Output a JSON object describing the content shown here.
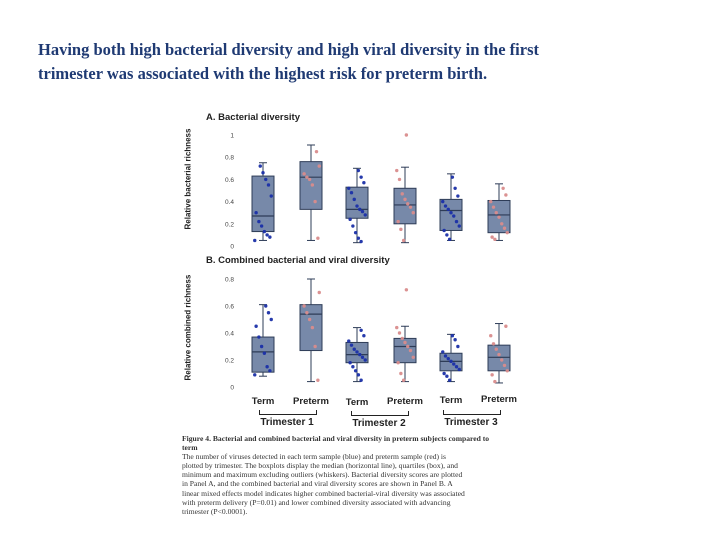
{
  "slide": {
    "title_line1": "Having both high bacterial diversity and high viral diversity in the first",
    "title_line2": "trimester was associated with the highest risk for preterm birth."
  },
  "colors": {
    "box_fill": "#7789a9",
    "box_stroke": "#2e3c57",
    "term": "#1a2fa8",
    "preterm": "#d98c8c",
    "title": "#1f3a73"
  },
  "x_labels": [
    "Term",
    "Preterm",
    "Term",
    "Preterm",
    "Term",
    "Preterm"
  ],
  "trimesters": [
    "Trimester 1",
    "Trimester 2",
    "Trimester 3"
  ],
  "caption": {
    "heading_line1": "Figure 4. Bacterial and combined bacterial and viral diversity in preterm subjects compared to",
    "heading_line2": "term",
    "l1": "The number of viruses detected in each term sample (blue) and preterm sample (red) is",
    "l2": "plotted by trimester. The boxplots display the median (horizontal line), quartiles (box), and",
    "l3": "minimum and maximum excluding outliers (whiskers). Bacterial diversity scores are plotted",
    "l4": "in Panel A, and the combined bacterial and viral diversity scores are shown in Panel B. A",
    "l5": "linear mixed effects model indicates higher combined bacterial-viral diversity was associated",
    "l6": "with preterm delivery (P=0.01) and lower combined diversity associated with advancing",
    "l7": "trimester (P<0.0001)."
  },
  "chart_data": [
    {
      "type": "boxplot",
      "title": "A. Bacterial diversity",
      "ylabel": "Relative bacterial richness",
      "ylim": [
        0,
        1
      ],
      "yticks": [
        "0",
        "0.2",
        "0.4",
        "0.6",
        "0.8",
        "1"
      ],
      "categories": [
        "Term",
        "Preterm",
        "Term",
        "Preterm",
        "Term",
        "Preterm"
      ],
      "groups": [
        "Trimester 1",
        "Trimester 1",
        "Trimester 2",
        "Trimester 2",
        "Trimester 3",
        "Trimester 3"
      ],
      "boxes": [
        {
          "min": 0.05,
          "q1": 0.13,
          "median": 0.27,
          "q3": 0.63,
          "max": 0.75,
          "color": "term",
          "points": [
            0.05,
            0.08,
            0.1,
            0.13,
            0.18,
            0.22,
            0.3,
            0.45,
            0.55,
            0.6,
            0.66,
            0.72
          ]
        },
        {
          "min": 0.05,
          "q1": 0.33,
          "median": 0.62,
          "q3": 0.76,
          "max": 0.91,
          "color": "preterm",
          "points": [
            0.07,
            0.4,
            0.55,
            0.6,
            0.62,
            0.65,
            0.72,
            0.85
          ]
        },
        {
          "min": 0.03,
          "q1": 0.25,
          "median": 0.33,
          "q3": 0.53,
          "max": 0.7,
          "color": "term",
          "points": [
            0.04,
            0.07,
            0.12,
            0.18,
            0.24,
            0.28,
            0.31,
            0.33,
            0.36,
            0.42,
            0.48,
            0.52,
            0.57,
            0.62,
            0.68
          ]
        },
        {
          "min": 0.03,
          "q1": 0.2,
          "median": 0.37,
          "q3": 0.52,
          "max": 0.71,
          "color": "preterm",
          "points": [
            1.0,
            0.05,
            0.15,
            0.22,
            0.3,
            0.35,
            0.38,
            0.42,
            0.47,
            0.6,
            0.68
          ]
        },
        {
          "min": 0.05,
          "q1": 0.14,
          "median": 0.32,
          "q3": 0.42,
          "max": 0.65,
          "color": "term",
          "points": [
            0.06,
            0.1,
            0.14,
            0.18,
            0.22,
            0.27,
            0.3,
            0.33,
            0.36,
            0.4,
            0.45,
            0.52,
            0.62
          ]
        },
        {
          "min": 0.05,
          "q1": 0.12,
          "median": 0.28,
          "q3": 0.41,
          "max": 0.56,
          "color": "preterm",
          "points": [
            0.06,
            0.08,
            0.12,
            0.16,
            0.2,
            0.26,
            0.3,
            0.35,
            0.4,
            0.46,
            0.52
          ]
        }
      ]
    },
    {
      "type": "boxplot",
      "title": "B. Combined bacterial and viral diversity",
      "ylabel": "Relative combined richness",
      "ylim": [
        0,
        0.8
      ],
      "yticks": [
        "0",
        "0.2",
        "0.4",
        "0.6",
        "0.8"
      ],
      "categories": [
        "Term",
        "Preterm",
        "Term",
        "Preterm",
        "Term",
        "Preterm"
      ],
      "groups": [
        "Trimester 1",
        "Trimester 1",
        "Trimester 2",
        "Trimester 2",
        "Trimester 3",
        "Trimester 3"
      ],
      "boxes": [
        {
          "min": 0.08,
          "q1": 0.11,
          "median": 0.26,
          "q3": 0.37,
          "max": 0.61,
          "color": "term",
          "points": [
            0.09,
            0.12,
            0.15,
            0.25,
            0.3,
            0.37,
            0.45,
            0.5,
            0.55,
            0.6
          ]
        },
        {
          "min": 0.04,
          "q1": 0.27,
          "median": 0.54,
          "q3": 0.61,
          "max": 0.8,
          "color": "preterm",
          "points": [
            0.05,
            0.3,
            0.44,
            0.5,
            0.55,
            0.6,
            0.7
          ]
        },
        {
          "min": 0.04,
          "q1": 0.18,
          "median": 0.24,
          "q3": 0.33,
          "max": 0.44,
          "color": "term",
          "points": [
            0.05,
            0.09,
            0.12,
            0.15,
            0.18,
            0.2,
            0.22,
            0.24,
            0.26,
            0.28,
            0.31,
            0.34,
            0.38,
            0.42
          ]
        },
        {
          "min": 0.04,
          "q1": 0.18,
          "median": 0.3,
          "q3": 0.36,
          "max": 0.45,
          "color": "preterm",
          "points": [
            0.72,
            0.05,
            0.1,
            0.18,
            0.22,
            0.27,
            0.3,
            0.33,
            0.36,
            0.4,
            0.44
          ]
        },
        {
          "min": 0.04,
          "q1": 0.12,
          "median": 0.19,
          "q3": 0.25,
          "max": 0.39,
          "color": "term",
          "points": [
            0.05,
            0.08,
            0.1,
            0.13,
            0.15,
            0.17,
            0.19,
            0.21,
            0.23,
            0.26,
            0.3,
            0.35,
            0.38
          ]
        },
        {
          "min": 0.03,
          "q1": 0.12,
          "median": 0.22,
          "q3": 0.31,
          "max": 0.47,
          "color": "preterm",
          "points": [
            0.04,
            0.09,
            0.12,
            0.16,
            0.2,
            0.24,
            0.28,
            0.32,
            0.38,
            0.45
          ]
        }
      ]
    }
  ]
}
